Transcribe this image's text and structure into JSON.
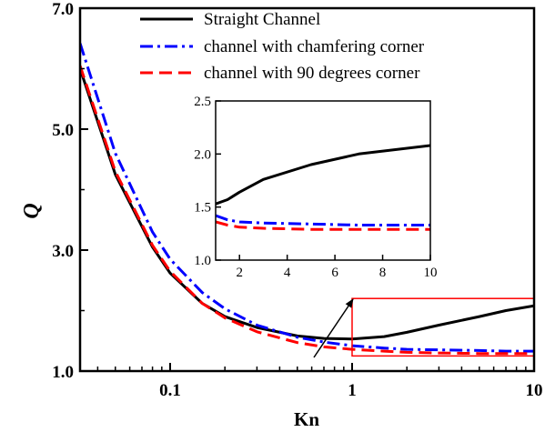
{
  "chart_data": {
    "type": "line",
    "xlabel": "Kn",
    "ylabel": "Q",
    "xscale": "log",
    "xlim": [
      0.032,
      10
    ],
    "ylim": [
      1.0,
      7.0
    ],
    "x_ticks": [
      {
        "value": 0.1,
        "label": "0.1"
      },
      {
        "value": 1,
        "label": "1"
      },
      {
        "value": 10,
        "label": "10"
      }
    ],
    "y_ticks": [
      {
        "value": 1.0,
        "label": "1.0"
      },
      {
        "value": 3.0,
        "label": "3.0"
      },
      {
        "value": 5.0,
        "label": "5.0"
      },
      {
        "value": 7.0,
        "label": "7.0"
      }
    ],
    "legend_position": "top-right",
    "series": [
      {
        "name": "Straight Channel",
        "color": "#000000",
        "dash": "solid",
        "x": [
          0.032,
          0.05,
          0.08,
          0.1,
          0.15,
          0.2,
          0.3,
          0.5,
          0.7,
          1,
          1.5,
          2,
          3,
          5,
          7,
          10
        ],
        "y": [
          6.0,
          4.25,
          3.05,
          2.62,
          2.12,
          1.9,
          1.72,
          1.58,
          1.54,
          1.53,
          1.57,
          1.64,
          1.76,
          1.9,
          2.0,
          2.08
        ]
      },
      {
        "name": "channel with chamfering corner",
        "color": "#0000ff",
        "dash": "dashdot",
        "x": [
          0.032,
          0.05,
          0.08,
          0.1,
          0.15,
          0.2,
          0.3,
          0.5,
          0.7,
          1,
          1.5,
          2,
          3,
          5,
          7,
          10
        ],
        "y": [
          6.42,
          4.6,
          3.3,
          2.85,
          2.3,
          2.03,
          1.76,
          1.56,
          1.48,
          1.42,
          1.38,
          1.36,
          1.35,
          1.34,
          1.33,
          1.33
        ]
      },
      {
        "name": "channel with 90 degrees corner",
        "color": "#ff0000",
        "dash": "dash",
        "x": [
          0.032,
          0.05,
          0.08,
          0.1,
          0.15,
          0.2,
          0.3,
          0.5,
          0.7,
          1,
          1.5,
          2,
          3,
          5,
          7,
          10
        ],
        "y": [
          6.05,
          4.3,
          3.08,
          2.65,
          2.12,
          1.88,
          1.65,
          1.47,
          1.4,
          1.36,
          1.33,
          1.31,
          1.3,
          1.29,
          1.29,
          1.29
        ]
      }
    ],
    "highlight_box": {
      "x": [
        1,
        10
      ],
      "y": [
        1.25,
        2.2
      ]
    },
    "inset": {
      "xlim": [
        1,
        10
      ],
      "ylim": [
        1.0,
        2.5
      ],
      "x_ticks": [
        {
          "value": 2,
          "label": "2"
        },
        {
          "value": 4,
          "label": "4"
        },
        {
          "value": 6,
          "label": "6"
        },
        {
          "value": 8,
          "label": "8"
        },
        {
          "value": 10,
          "label": "10"
        }
      ],
      "y_ticks": [
        {
          "value": 1.0,
          "label": "1.0"
        },
        {
          "value": 1.5,
          "label": "1.5"
        },
        {
          "value": 2.0,
          "label": "2.0"
        },
        {
          "value": 2.5,
          "label": "2.5"
        }
      ]
    }
  }
}
